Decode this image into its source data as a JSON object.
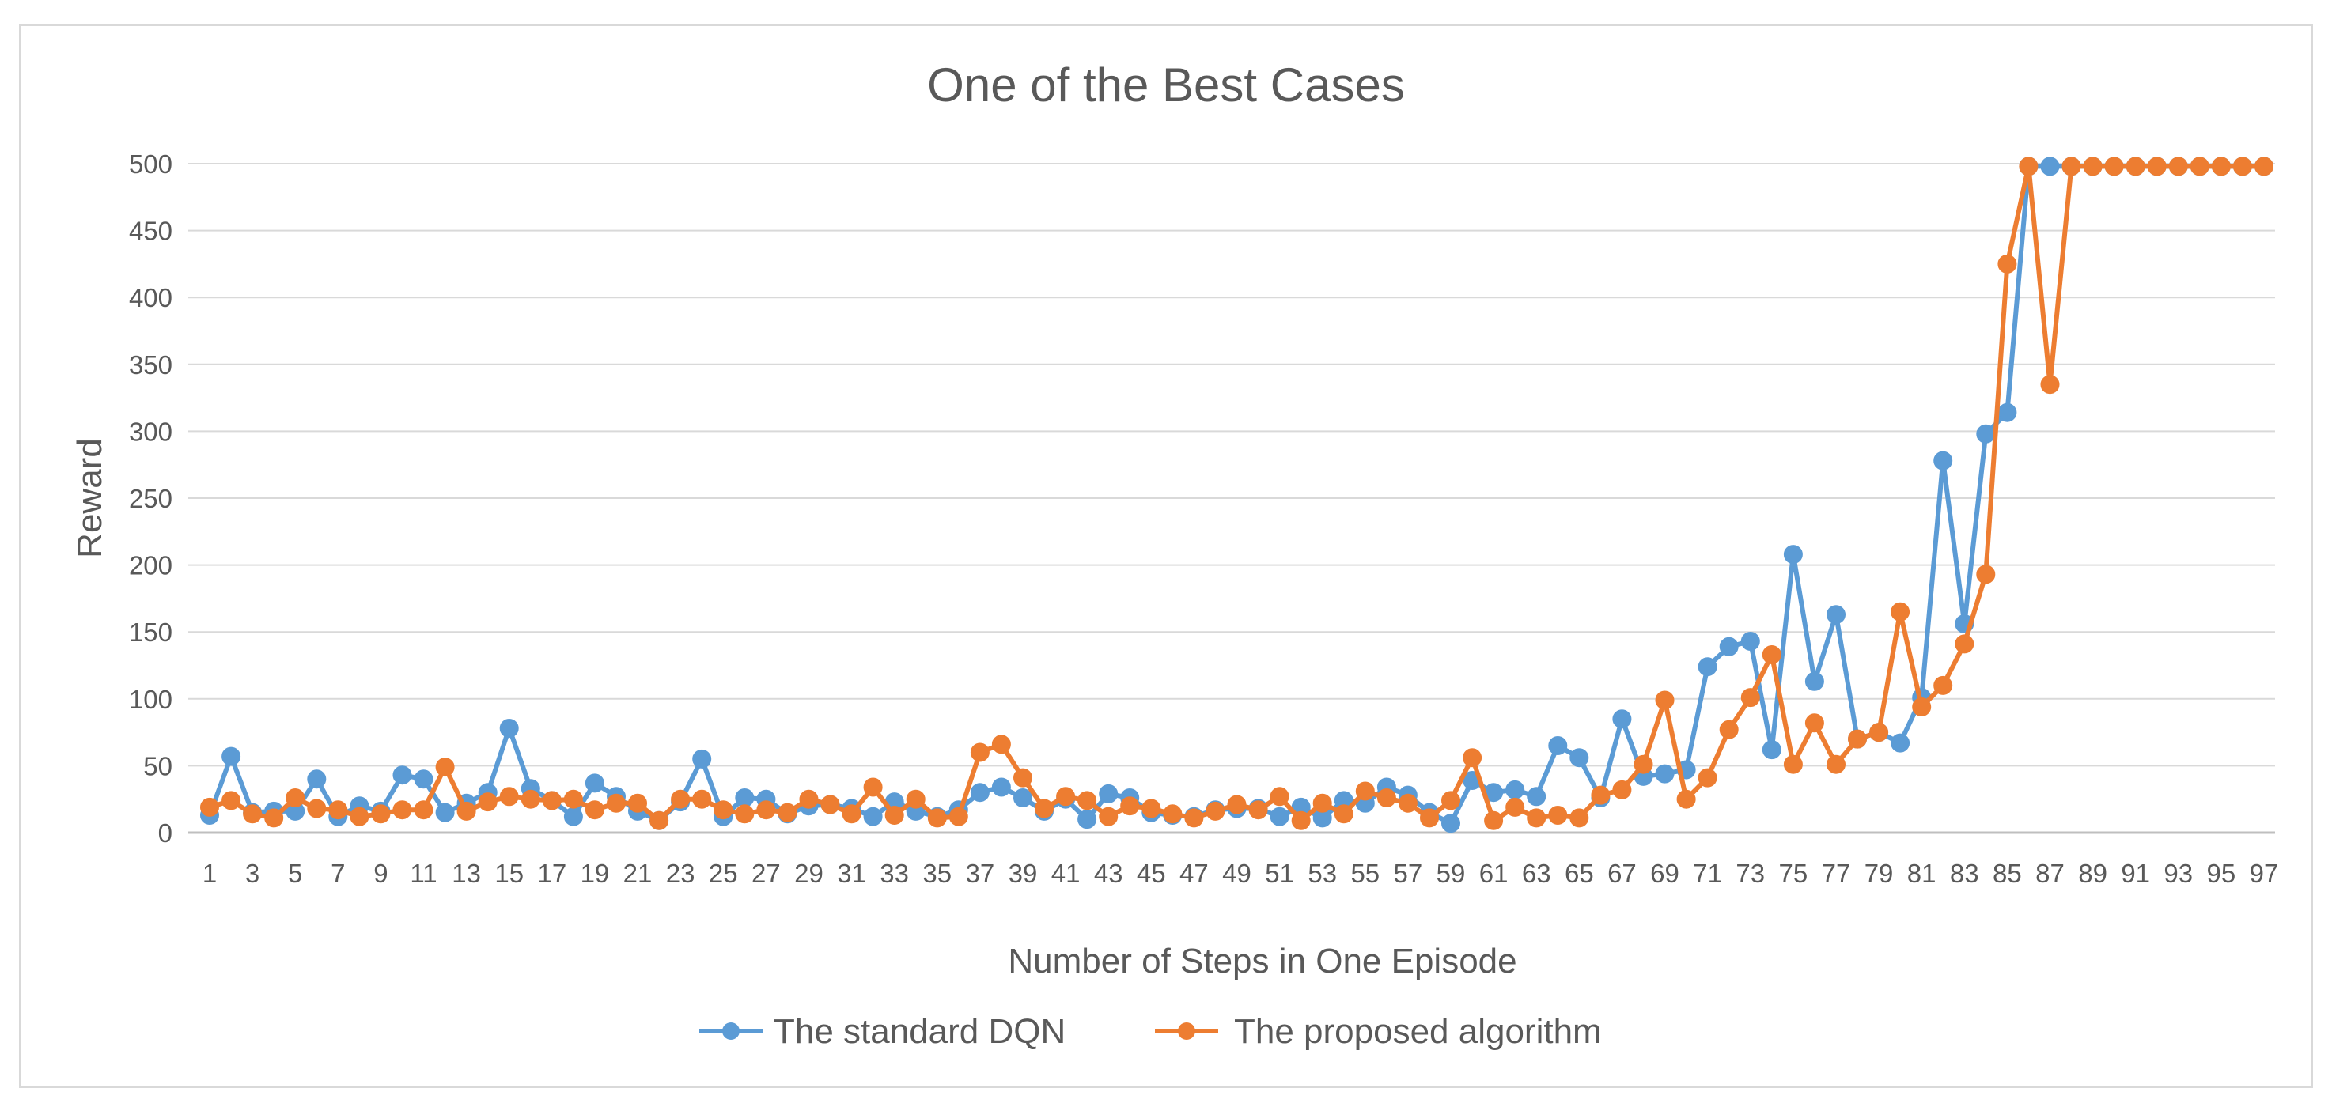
{
  "chart_data": {
    "type": "line",
    "title": "One of the Best Cases",
    "xlabel": "Number of Steps in One Episode",
    "ylabel": "Reward",
    "ylim": [
      0,
      500
    ],
    "yticks": [
      0,
      50,
      100,
      150,
      200,
      250,
      300,
      350,
      400,
      450,
      500
    ],
    "xlim": [
      1,
      97
    ],
    "xtick_step": 2,
    "grid": "horizontal",
    "legend_position": "bottom",
    "x": [
      1,
      2,
      3,
      4,
      5,
      6,
      7,
      8,
      9,
      10,
      11,
      12,
      13,
      14,
      15,
      16,
      17,
      18,
      19,
      20,
      21,
      22,
      23,
      24,
      25,
      26,
      27,
      28,
      29,
      30,
      31,
      32,
      33,
      34,
      35,
      36,
      37,
      38,
      39,
      40,
      41,
      42,
      43,
      44,
      45,
      46,
      47,
      48,
      49,
      50,
      51,
      52,
      53,
      54,
      55,
      56,
      57,
      58,
      59,
      60,
      61,
      62,
      63,
      64,
      65,
      66,
      67,
      68,
      69,
      70,
      71,
      72,
      73,
      74,
      75,
      76,
      77,
      78,
      79,
      80,
      81,
      82,
      83,
      84,
      85,
      86,
      87,
      88,
      89,
      90,
      91,
      92,
      93,
      94,
      95,
      96,
      97
    ],
    "series": [
      {
        "name": "The standard DQN",
        "color": "#5b9bd5",
        "values": [
          13,
          57,
          15,
          16,
          16,
          40,
          12,
          20,
          16,
          43,
          40,
          15,
          22,
          30,
          78,
          33,
          24,
          12,
          37,
          27,
          16,
          9,
          23,
          55,
          12,
          26,
          25,
          14,
          20,
          21,
          18,
          12,
          23,
          16,
          12,
          17,
          30,
          34,
          26,
          16,
          25,
          10,
          29,
          26,
          15,
          13,
          12,
          17,
          18,
          18,
          12,
          19,
          11,
          24,
          22,
          34,
          28,
          15,
          7,
          39,
          30,
          32,
          27,
          65,
          56,
          26,
          85,
          42,
          44,
          47,
          124,
          139,
          143,
          62,
          208,
          113,
          163,
          70,
          75,
          67,
          101,
          278,
          156,
          298,
          314,
          498,
          498,
          498,
          498,
          498,
          498,
          498,
          498,
          498,
          498,
          498,
          498
        ]
      },
      {
        "name": "The proposed algorithm",
        "color": "#ed7d31",
        "values": [
          19,
          24,
          14,
          11,
          26,
          18,
          17,
          12,
          14,
          17,
          17,
          49,
          16,
          23,
          27,
          25,
          24,
          25,
          17,
          22,
          22,
          9,
          25,
          25,
          17,
          14,
          17,
          15,
          25,
          21,
          14,
          34,
          13,
          25,
          11,
          12,
          60,
          66,
          41,
          18,
          27,
          24,
          12,
          20,
          18,
          14,
          11,
          16,
          21,
          17,
          27,
          9,
          22,
          14,
          31,
          26,
          22,
          11,
          24,
          56,
          9,
          19,
          11,
          13,
          11,
          28,
          32,
          51,
          99,
          25,
          41,
          77,
          101,
          133,
          51,
          82,
          51,
          70,
          75,
          165,
          94,
          110,
          141,
          193,
          425,
          498,
          335,
          498,
          498,
          498,
          498,
          498,
          498,
          498,
          498,
          498,
          498
        ]
      }
    ]
  }
}
